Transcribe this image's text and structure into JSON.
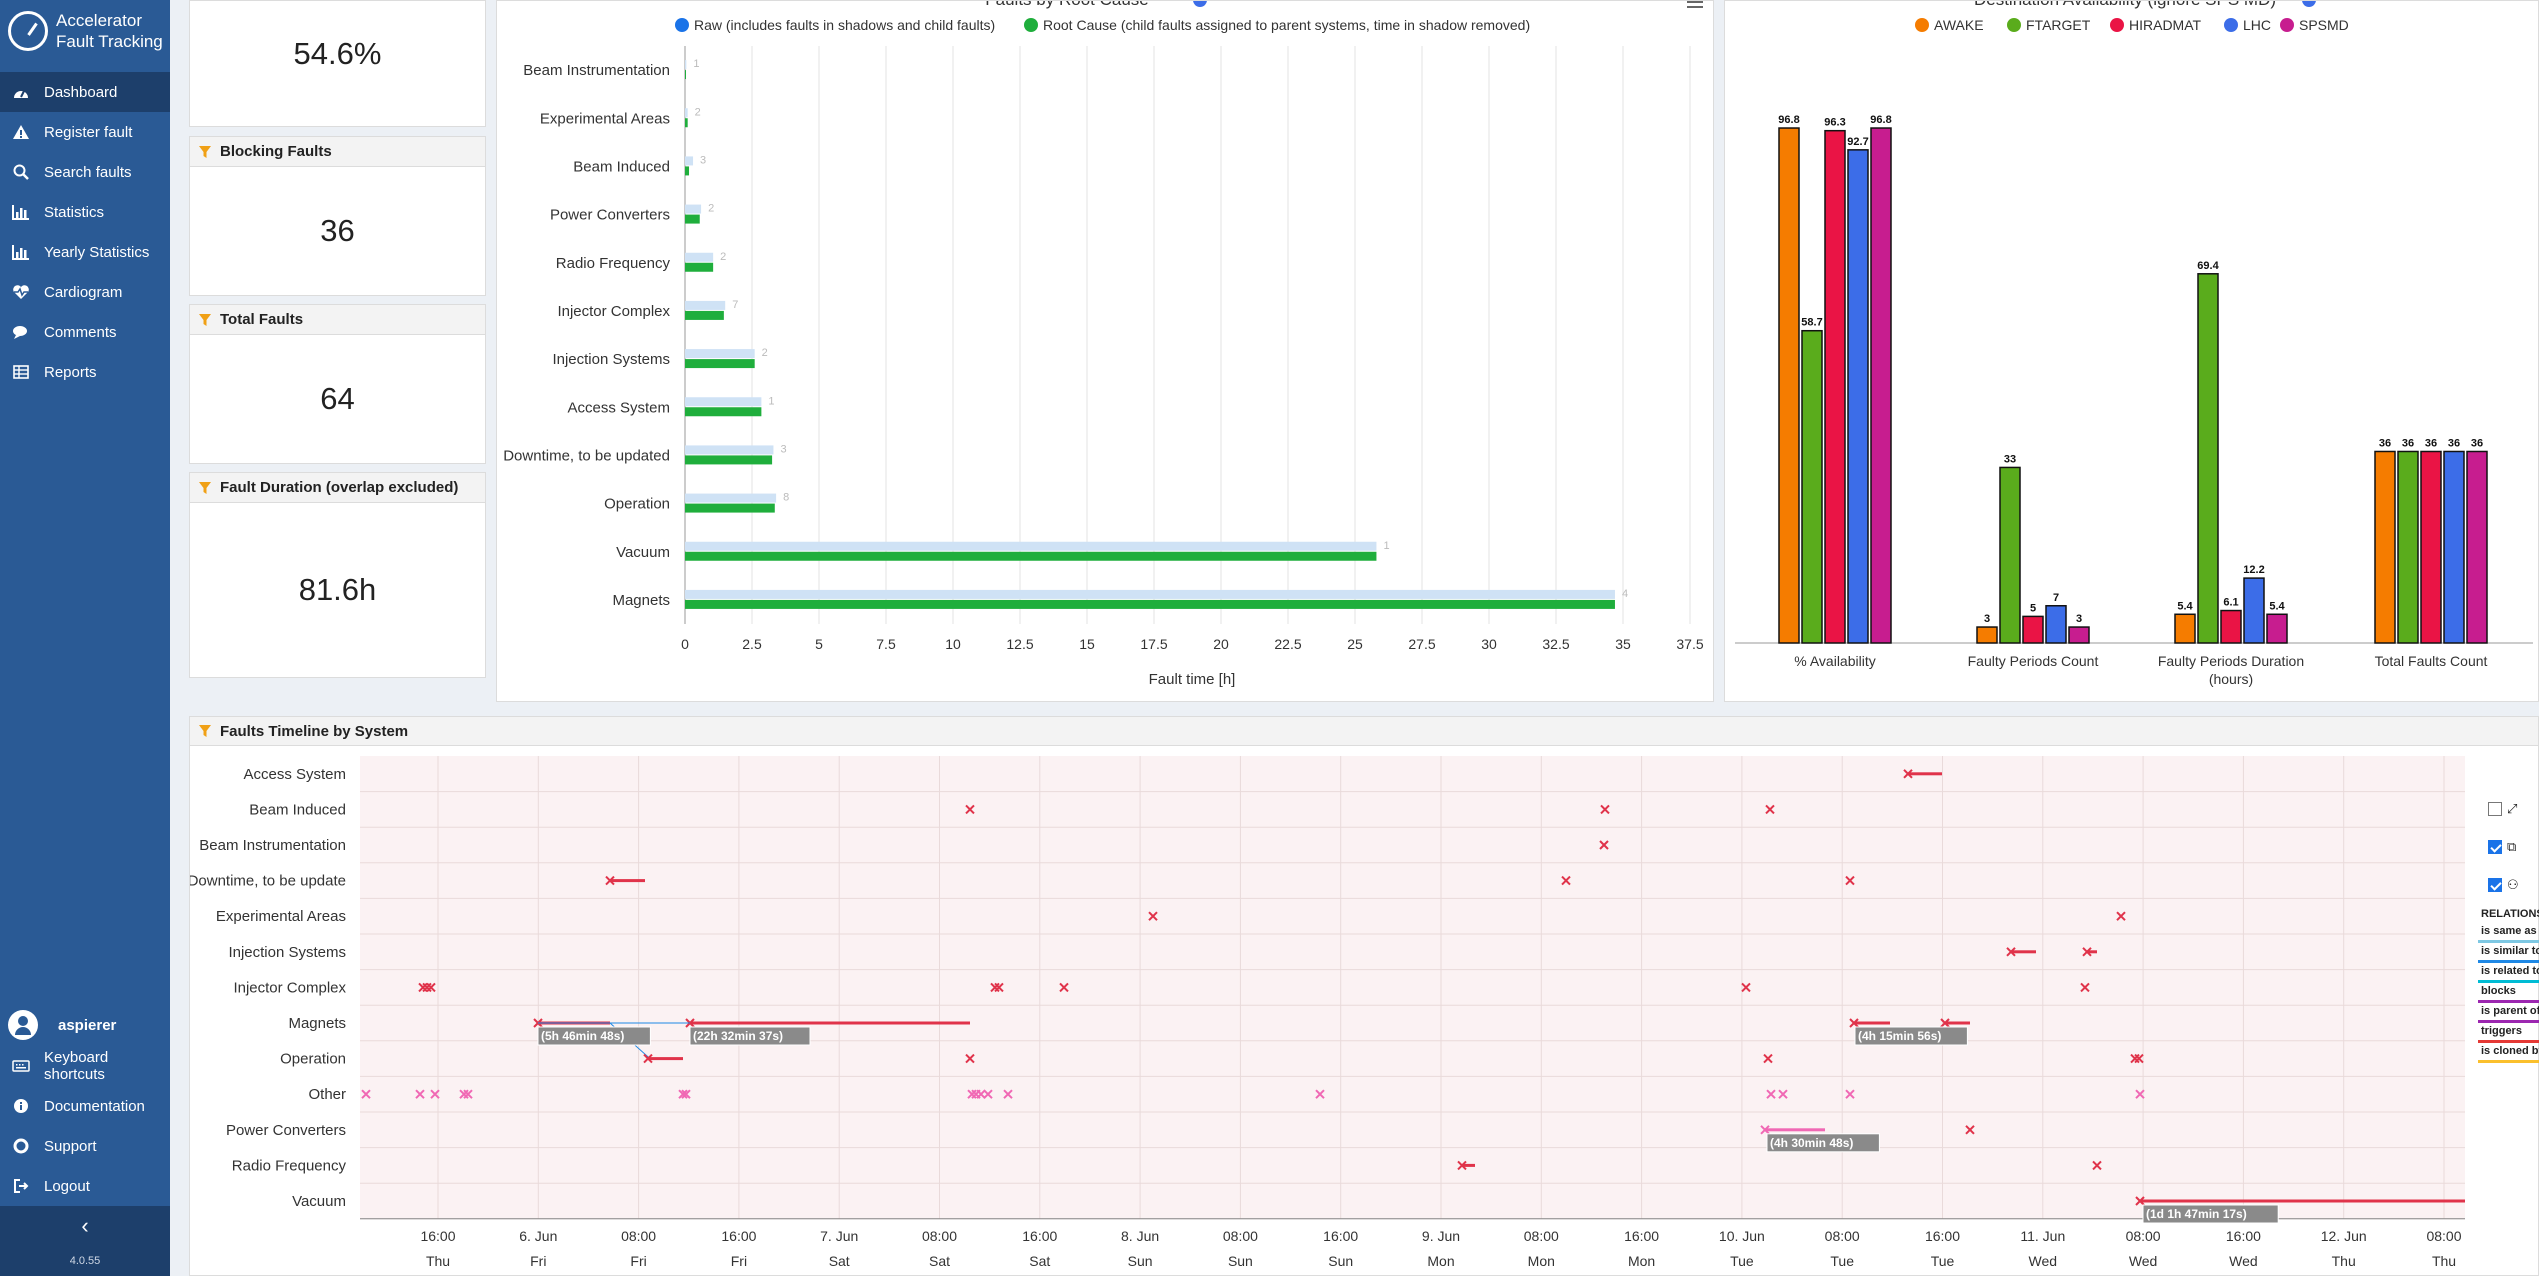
{
  "app": {
    "title_line1": "Accelerator",
    "title_line2": "Fault Tracking",
    "version": "4.0.55"
  },
  "sidebar": {
    "items": [
      {
        "label": "Dashboard",
        "icon": "speedometer-icon",
        "active": true
      },
      {
        "label": "Register fault",
        "icon": "warning-icon"
      },
      {
        "label": "Search faults",
        "icon": "search-icon"
      },
      {
        "label": "Statistics",
        "icon": "bar-chart-icon"
      },
      {
        "label": "Yearly Statistics",
        "icon": "bar-chart-icon"
      },
      {
        "label": "Cardiogram",
        "icon": "heartbeat-icon"
      },
      {
        "label": "Comments",
        "icon": "comments-icon"
      },
      {
        "label": "Reports",
        "icon": "table-icon"
      }
    ],
    "user": "aspierer",
    "bottom_items": [
      {
        "label": "Keyboard shortcuts",
        "icon": "keyboard-icon"
      },
      {
        "label": "Documentation",
        "icon": "info-icon"
      },
      {
        "label": "Support",
        "icon": "lifebuoy-icon"
      },
      {
        "label": "Logout",
        "icon": "logout-icon"
      }
    ],
    "collapse_glyph": "‹"
  },
  "kpis": [
    {
      "title": "",
      "value": "54.6%"
    },
    {
      "title": "Blocking Faults",
      "value": "36"
    },
    {
      "title": "Total Faults",
      "value": "64"
    },
    {
      "title": "Fault Duration (overlap excluded)",
      "value": "81.6h"
    }
  ],
  "root_cause_chart": {
    "title": "Faults by Root Cause",
    "menu_icon": "hamburger-menu-icon",
    "info_icon": "info-circle-icon",
    "colors": {
      "raw": "#cfe2f5",
      "root": "#1fae3c",
      "raw_legend": "#1a73e8"
    },
    "chart_data": {
      "type": "bar",
      "orientation": "horizontal",
      "categories": [
        "Beam Instrumentation",
        "Experimental Areas",
        "Beam Induced",
        "Power Converters",
        "Radio Frequency",
        "Injector Complex",
        "Injection Systems",
        "Access System",
        "Downtime, to be updated",
        "Operation",
        "Vacuum",
        "Magnets"
      ],
      "series": [
        {
          "name": "Raw (includes faults in shadows and child faults)",
          "values": [
            0.05,
            0.1,
            0.3,
            0.6,
            1.05,
            1.5,
            2.6,
            2.85,
            3.3,
            3.4,
            25.8,
            34.7
          ]
        },
        {
          "name": "Root Cause (child faults assigned to parent systems, time in shadow removed)",
          "values": [
            0.02,
            0.1,
            0.15,
            0.55,
            1.05,
            1.45,
            2.6,
            2.85,
            3.25,
            3.35,
            25.8,
            34.7
          ]
        }
      ],
      "data_labels": [
        "1",
        "2",
        "3",
        "2",
        "2",
        "7",
        "2",
        "1",
        "3",
        "8",
        "1",
        "4"
      ],
      "xlabel": "Fault time [h]",
      "xlim": [
        0,
        37.5
      ],
      "xticks": [
        "0",
        "2.5",
        "5",
        "7.5",
        "10",
        "12.5",
        "15",
        "17.5",
        "20",
        "22.5",
        "25",
        "27.5",
        "30",
        "32.5",
        "35",
        "37.5"
      ],
      "grid": true,
      "legend_position": "top"
    }
  },
  "availability_chart": {
    "title": "Destination Availability (ignore SPS MD)",
    "info_icon": "info-circle-icon",
    "chart_data": {
      "type": "bar",
      "categories": [
        "% Availability",
        "Faulty Periods Count",
        "Faulty Periods Duration (hours)",
        "Total Faults Count"
      ],
      "series": [
        {
          "name": "AWAKE",
          "color": "#f57c00",
          "values": [
            96.8,
            3,
            5.4,
            36
          ]
        },
        {
          "name": "FTARGET",
          "color": "#5aac1c",
          "values": [
            58.7,
            33,
            69.4,
            36
          ]
        },
        {
          "name": "HIRADMAT",
          "color": "#ea1445",
          "values": [
            96.3,
            5,
            6.1,
            36
          ]
        },
        {
          "name": "LHC",
          "color": "#3c6de8",
          "values": [
            92.7,
            7,
            12.2,
            36
          ]
        },
        {
          "name": "SPSMD",
          "color": "#c71d8f",
          "values": [
            96.8,
            3,
            5.4,
            36
          ]
        }
      ],
      "ylim": [
        0,
        100
      ],
      "legend_position": "top"
    }
  },
  "timeline": {
    "title": "Faults Timeline by System",
    "systems": [
      "Access System",
      "Beam Induced",
      "Beam Instrumentation",
      "Downtime, to be update",
      "Experimental Areas",
      "Injection Systems",
      "Injector Complex",
      "Magnets",
      "Operation",
      "Other",
      "Power Converters",
      "Radio Frequency",
      "Vacuum"
    ],
    "time_labels": [
      "16:00",
      "6. Jun",
      "08:00",
      "16:00",
      "7. Jun",
      "08:00",
      "16:00",
      "8. Jun",
      "08:00",
      "16:00",
      "9. Jun",
      "08:00",
      "16:00",
      "10. Jun",
      "08:00",
      "16:00",
      "11. Jun",
      "08:00",
      "16:00",
      "12. Jun",
      "08:00"
    ],
    "day_labels": [
      "Thu",
      "Fri",
      "Fri",
      "Fri",
      "Sat",
      "Sat",
      "Sat",
      "Sun",
      "Sun",
      "Sun",
      "Mon",
      "Mon",
      "Mon",
      "Tue",
      "Tue",
      "Tue",
      "Wed",
      "Wed",
      "Wed",
      "Thu",
      "Thu"
    ],
    "duration_labels": [
      "(5h 46min 48s)",
      "(22h 32min 37s)",
      "(4h 15min 56s)",
      "(4h 30min 48s)",
      "(1d 1h 47min 17s)"
    ],
    "fault_color": "#e0334a",
    "other_color": "#f068b4",
    "options": [
      {
        "icon": "expand-icon",
        "checked": false
      },
      {
        "icon": "tags-icon",
        "checked": true
      },
      {
        "icon": "hierarchy-icon",
        "checked": true
      }
    ],
    "relations_title": "RELATIONS",
    "relations": [
      {
        "label": "is same as",
        "color": "#7ec8e3"
      },
      {
        "label": "is similar to",
        "color": "#1e88e5"
      },
      {
        "label": "is related to",
        "color": "#00bcd4"
      },
      {
        "label": "blocks",
        "color": "#9c27b0"
      },
      {
        "label": "is parent of",
        "color": "#9c27b0"
      },
      {
        "label": "triggers",
        "color": "#e53935"
      },
      {
        "label": "is cloned by",
        "color": "#fbc02d"
      }
    ]
  }
}
